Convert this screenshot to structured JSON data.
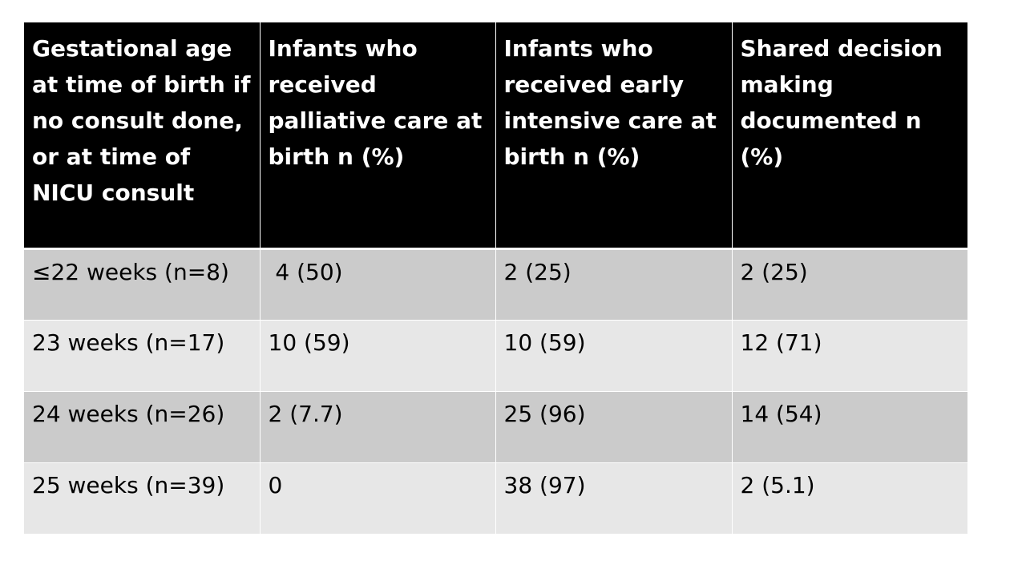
{
  "table": {
    "headers": [
      "Gestational age at time of birth if no consult done, or at time of NICU consult",
      "Infants who received palliative care at birth n (%)",
      "Infants who received early intensive care at birth n (%)",
      "Shared decision making documented n (%)"
    ],
    "rows": [
      [
        "≤22 weeks (n=8)",
        " 4 (50)",
        "2 (25)",
        "2 (25)"
      ],
      [
        "23 weeks (n=17)",
        "10 (59)",
        "10 (59)",
        "12 (71)"
      ],
      [
        "24 weeks (n=26)",
        "2 (7.7)",
        "25 (96)",
        "14 (54)"
      ],
      [
        "25 weeks (n=39)",
        "0",
        "38 (97)",
        "2 (5.1)"
      ]
    ]
  },
  "colors": {
    "header_bg": "#000000",
    "header_text": "#ffffff",
    "row_odd_bg": "#cbcbcb",
    "row_even_bg": "#e7e7e7"
  }
}
